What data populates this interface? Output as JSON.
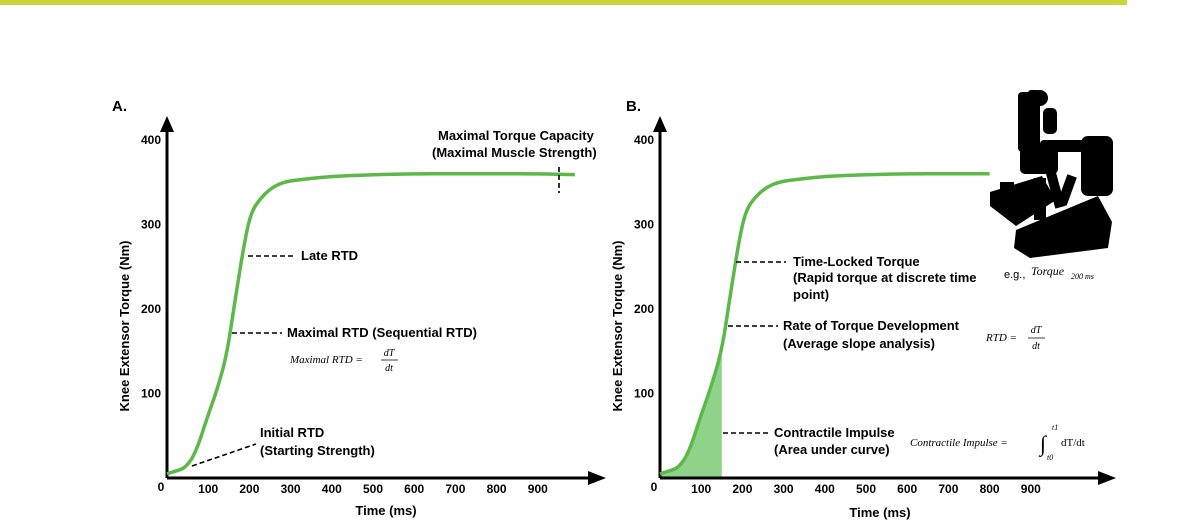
{
  "banner_color": "#c8d63c",
  "curve_color": "#5cb848",
  "impulse_fill": "#8fd38a",
  "chart_data": [
    {
      "type": "line",
      "panel_label": "A.",
      "xlabel": "Time (ms)",
      "ylabel": "Knee Extensor Torque (Nm)",
      "x_ticks": [
        "0",
        "100",
        "200",
        "300",
        "400",
        "500",
        "600",
        "700",
        "800",
        "900"
      ],
      "y_ticks": [
        "100",
        "200",
        "300",
        "400"
      ],
      "xlim": [
        0,
        1000
      ],
      "ylim": [
        0,
        440
      ],
      "grid": false,
      "series": [
        {
          "x": [
            0,
            20,
            45,
            70,
            100,
            120,
            145,
            165,
            190,
            205,
            225,
            250,
            280,
            320,
            400,
            500,
            600,
            700,
            800,
            900,
            990
          ],
          "y": [
            5,
            8,
            12,
            30,
            75,
            102,
            145,
            210,
            285,
            315,
            330,
            342,
            350,
            353,
            357,
            359,
            360,
            360,
            360,
            360,
            359
          ]
        }
      ],
      "annotations": {
        "max_torque_1": "Maximal Torque Capacity",
        "max_torque_2": "(Maximal Muscle Strength)",
        "late_rtd": "Late RTD",
        "max_rtd": "Maximal RTD (Sequential RTD)",
        "max_rtd_formula_lhs": "Maximal RTD =",
        "initial_rtd_1": "Initial RTD",
        "initial_rtd_2": "(Starting Strength)"
      }
    },
    {
      "type": "area",
      "panel_label": "B.",
      "xlabel": "Time (ms)",
      "ylabel": "Knee Extensor Torque (Nm)",
      "x_ticks": [
        "0",
        "100",
        "200",
        "300",
        "400",
        "500",
        "600",
        "700",
        "800",
        "900"
      ],
      "y_ticks": [
        "100",
        "200",
        "300",
        "400"
      ],
      "xlim": [
        0,
        1000
      ],
      "ylim": [
        0,
        440
      ],
      "grid": false,
      "shaded_area_x": [
        0,
        150
      ],
      "series": [
        {
          "x": [
            0,
            20,
            45,
            70,
            100,
            120,
            150,
            170,
            195,
            210,
            230,
            255,
            285,
            325,
            400,
            500,
            600,
            700,
            800
          ],
          "y": [
            5,
            8,
            12,
            30,
            75,
            102,
            150,
            215,
            290,
            318,
            332,
            343,
            350,
            353,
            357,
            359,
            360,
            360,
            360
          ]
        }
      ],
      "annotations": {
        "time_locked_1": "Time-Locked Torque",
        "time_locked_2": "(Rapid torque at discrete time",
        "time_locked_3": "point)",
        "eg_prefix": "e.g.,",
        "eg_formula": "Torque",
        "eg_subscript": "200 ms",
        "rtd_1": "Rate of Torque Development",
        "rtd_2": "(Average slope analysis)",
        "rtd_formula_lhs": "RTD =",
        "impulse_1": "Contractile Impulse",
        "impulse_2": "(Area under curve)",
        "impulse_formula_lhs": "Contractile Impulse =",
        "integral_upper": "t1",
        "integral_lower": "t0",
        "integrand": "dT/dt"
      },
      "image_icon": "dynamometer-silhouette-icon"
    }
  ],
  "formula": {
    "numerator": "dT",
    "denominator": "dt"
  }
}
